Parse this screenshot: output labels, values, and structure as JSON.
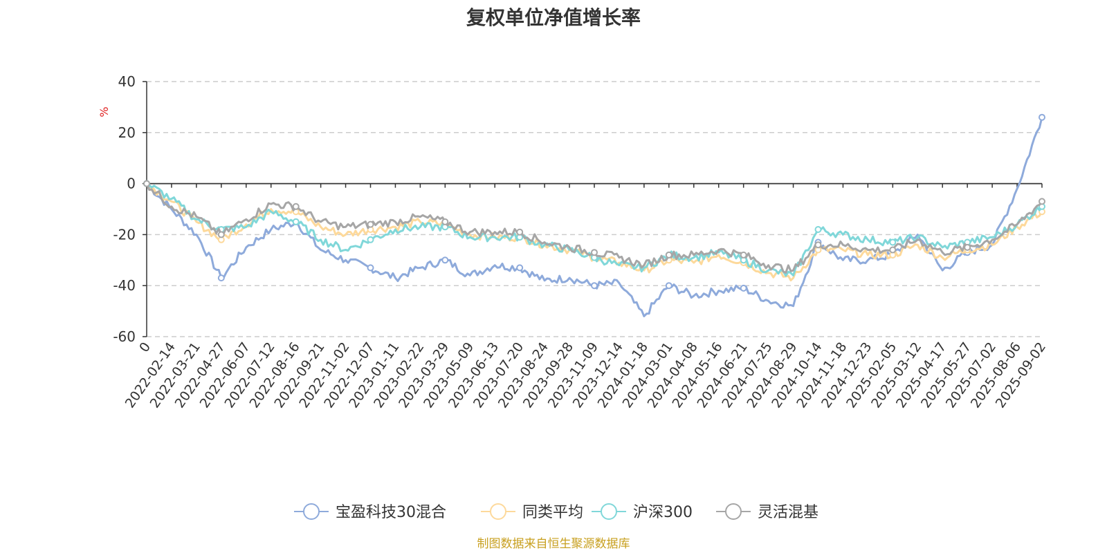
{
  "chart_data": {
    "type": "line",
    "title": "复权单位净值增长率",
    "ylabel": "%",
    "ylim": [
      -60,
      40
    ],
    "yticks": [
      40,
      20,
      0,
      -20,
      -40,
      -60
    ],
    "grid": true,
    "legend_position": "bottom",
    "x_origin_label": "0",
    "categories": [
      "0",
      "2022-02-14",
      "2022-03-21",
      "2022-04-27",
      "2022-06-07",
      "2022-07-12",
      "2022-08-16",
      "2022-09-21",
      "2022-11-02",
      "2022-12-07",
      "2023-01-11",
      "2023-02-22",
      "2023-03-29",
      "2023-05-09",
      "2023-06-13",
      "2023-07-20",
      "2023-08-24",
      "2023-09-28",
      "2023-11-09",
      "2023-12-14",
      "2024-01-18",
      "2024-03-01",
      "2024-04-08",
      "2024-05-16",
      "2024-06-21",
      "2024-07-25",
      "2024-08-29",
      "2024-10-14",
      "2024-11-18",
      "2024-12-23",
      "2025-02-05",
      "2025-03-12",
      "2025-04-17",
      "2025-05-27",
      "2025-07-02",
      "2025-08-06",
      "2025-09-02"
    ],
    "series": [
      {
        "name": "宝盈科技30混合",
        "color": "#8eaadb",
        "values": [
          0,
          -10,
          -20,
          -37,
          -25,
          -18,
          -15,
          -26,
          -30,
          -33,
          -37,
          -33,
          -30,
          -36,
          -32,
          -33,
          -38,
          -37,
          -40,
          -39,
          -52,
          -40,
          -44,
          -42,
          -41,
          -46,
          -48,
          -23,
          -30,
          -30,
          -28,
          -20,
          -34,
          -27,
          -24,
          -2,
          26
        ]
      },
      {
        "name": "同类平均",
        "color": "#fdd99b",
        "values": [
          0,
          -7,
          -15,
          -22,
          -16,
          -10,
          -11,
          -17,
          -20,
          -18,
          -17,
          -15,
          -16,
          -20,
          -21,
          -21,
          -24,
          -26,
          -29,
          -31,
          -34,
          -30,
          -31,
          -28,
          -31,
          -35,
          -37,
          -26,
          -26,
          -28,
          -28,
          -24,
          -29,
          -26,
          -24,
          -17,
          -11
        ]
      },
      {
        "name": "沪深300",
        "color": "#80d7d9",
        "values": [
          0,
          -6,
          -14,
          -18,
          -17,
          -11,
          -15,
          -22,
          -26,
          -22,
          -18,
          -17,
          -17,
          -21,
          -21,
          -21,
          -24,
          -26,
          -29,
          -32,
          -33,
          -28,
          -29,
          -27,
          -30,
          -34,
          -36,
          -18,
          -20,
          -22,
          -23,
          -21,
          -25,
          -23,
          -21,
          -16,
          -9
        ]
      },
      {
        "name": "灵活混基",
        "color": "#a6a6a6",
        "values": [
          0,
          -9,
          -13,
          -20,
          -14,
          -8,
          -9,
          -15,
          -17,
          -16,
          -15,
          -13,
          -15,
          -19,
          -19,
          -19,
          -23,
          -25,
          -27,
          -29,
          -32,
          -28,
          -28,
          -26,
          -28,
          -32,
          -34,
          -24,
          -24,
          -26,
          -26,
          -22,
          -27,
          -25,
          -22,
          -16,
          -7
        ]
      }
    ]
  },
  "source_note": "制图数据来自恒生聚源数据库",
  "colors": {
    "unit_label": "#e02020",
    "source_note": "#c8a020"
  }
}
